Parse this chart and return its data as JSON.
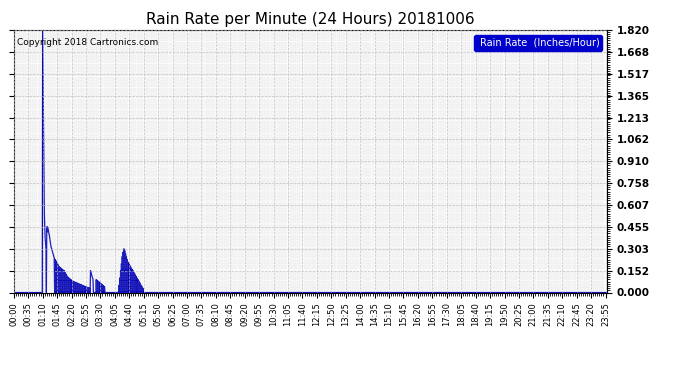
{
  "title": "Rain Rate per Minute (24 Hours) 20181006",
  "copyright": "Copyright 2018 Cartronics.com",
  "legend_label": "Rain Rate  (Inches/Hour)",
  "line_color": "#0000bb",
  "background_color": "#ffffff",
  "plot_bg_color": "#ffffff",
  "grid_color": "#bbbbbb",
  "yticks": [
    0.0,
    0.152,
    0.303,
    0.455,
    0.607,
    0.758,
    0.91,
    1.062,
    1.213,
    1.365,
    1.517,
    1.668,
    1.82
  ],
  "ylim": [
    0.0,
    1.82
  ],
  "total_minutes": 1440,
  "xtick_interval_minutes": 35,
  "rain_data": [
    [
      70,
      1.82
    ],
    [
      71,
      1.5
    ],
    [
      72,
      1.1
    ],
    [
      73,
      0.8
    ],
    [
      74,
      0.55
    ],
    [
      75,
      0.455
    ],
    [
      76,
      0.38
    ],
    [
      77,
      0.34
    ],
    [
      78,
      0.303
    ],
    [
      80,
      0.455
    ],
    [
      81,
      0.42
    ],
    [
      82,
      0.455
    ],
    [
      83,
      0.44
    ],
    [
      84,
      0.43
    ],
    [
      85,
      0.41
    ],
    [
      86,
      0.4
    ],
    [
      87,
      0.38
    ],
    [
      88,
      0.36
    ],
    [
      89,
      0.34
    ],
    [
      90,
      0.32
    ],
    [
      91,
      0.31
    ],
    [
      92,
      0.303
    ],
    [
      93,
      0.29
    ],
    [
      94,
      0.28
    ],
    [
      95,
      0.27
    ],
    [
      96,
      0.26
    ],
    [
      97,
      0.25
    ],
    [
      98,
      0.24
    ],
    [
      100,
      0.23
    ],
    [
      102,
      0.22
    ],
    [
      104,
      0.21
    ],
    [
      106,
      0.2
    ],
    [
      108,
      0.19
    ],
    [
      110,
      0.18
    ],
    [
      112,
      0.175
    ],
    [
      114,
      0.17
    ],
    [
      116,
      0.165
    ],
    [
      118,
      0.16
    ],
    [
      120,
      0.155
    ],
    [
      122,
      0.152
    ],
    [
      124,
      0.14
    ],
    [
      126,
      0.13
    ],
    [
      128,
      0.12
    ],
    [
      130,
      0.11
    ],
    [
      132,
      0.105
    ],
    [
      134,
      0.1
    ],
    [
      136,
      0.095
    ],
    [
      138,
      0.09
    ],
    [
      140,
      0.085
    ],
    [
      142,
      0.08
    ],
    [
      144,
      0.078
    ],
    [
      146,
      0.075
    ],
    [
      148,
      0.072
    ],
    [
      150,
      0.07
    ],
    [
      152,
      0.068
    ],
    [
      154,
      0.065
    ],
    [
      156,
      0.063
    ],
    [
      158,
      0.06
    ],
    [
      160,
      0.058
    ],
    [
      162,
      0.055
    ],
    [
      164,
      0.053
    ],
    [
      166,
      0.05
    ],
    [
      168,
      0.048
    ],
    [
      170,
      0.045
    ],
    [
      172,
      0.043
    ],
    [
      174,
      0.04
    ],
    [
      176,
      0.038
    ],
    [
      178,
      0.036
    ],
    [
      180,
      0.034
    ],
    [
      182,
      0.032
    ],
    [
      184,
      0.03
    ],
    [
      186,
      0.152
    ],
    [
      187,
      0.14
    ],
    [
      188,
      0.13
    ],
    [
      189,
      0.12
    ],
    [
      190,
      0.11
    ],
    [
      191,
      0.1
    ],
    [
      192,
      0.095
    ],
    [
      200,
      0.09
    ],
    [
      202,
      0.085
    ],
    [
      204,
      0.08
    ],
    [
      206,
      0.075
    ],
    [
      208,
      0.07
    ],
    [
      210,
      0.065
    ],
    [
      212,
      0.06
    ],
    [
      214,
      0.055
    ],
    [
      216,
      0.05
    ],
    [
      218,
      0.045
    ],
    [
      220,
      0.04
    ],
    [
      255,
      0.05
    ],
    [
      257,
      0.1
    ],
    [
      259,
      0.152
    ],
    [
      261,
      0.2
    ],
    [
      263,
      0.25
    ],
    [
      265,
      0.28
    ],
    [
      267,
      0.303
    ],
    [
      269,
      0.29
    ],
    [
      271,
      0.27
    ],
    [
      273,
      0.25
    ],
    [
      275,
      0.23
    ],
    [
      277,
      0.21
    ],
    [
      279,
      0.2
    ],
    [
      281,
      0.19
    ],
    [
      283,
      0.18
    ],
    [
      285,
      0.17
    ],
    [
      287,
      0.16
    ],
    [
      289,
      0.152
    ],
    [
      291,
      0.14
    ],
    [
      293,
      0.13
    ],
    [
      295,
      0.12
    ],
    [
      297,
      0.11
    ],
    [
      299,
      0.1
    ],
    [
      301,
      0.09
    ],
    [
      303,
      0.08
    ],
    [
      305,
      0.07
    ],
    [
      307,
      0.06
    ],
    [
      309,
      0.05
    ],
    [
      311,
      0.04
    ],
    [
      313,
      0.03
    ]
  ]
}
